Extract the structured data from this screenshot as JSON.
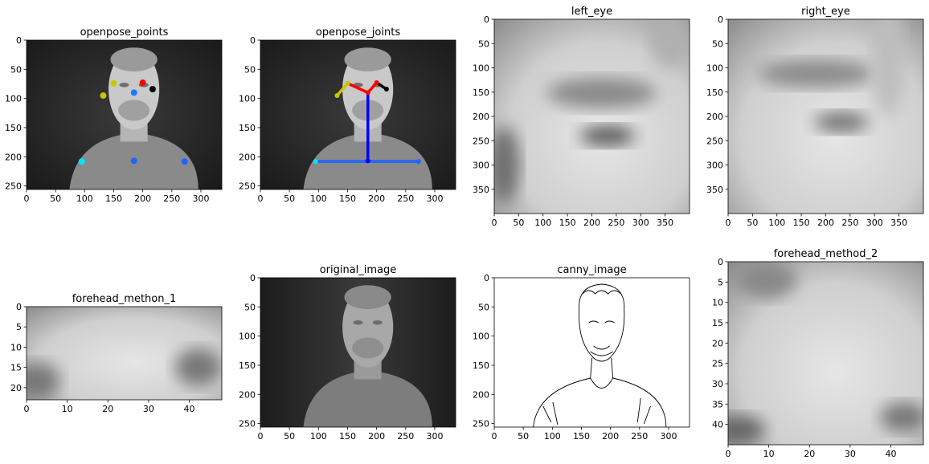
{
  "chart_data": [
    {
      "type": "image",
      "title": "openpose_points",
      "xticks": [
        0,
        50,
        100,
        150,
        200,
        250,
        300
      ],
      "yticks": [
        0,
        50,
        100,
        150,
        200,
        250
      ],
      "xlim": [
        0,
        336
      ],
      "ylim": [
        256,
        0
      ],
      "image": "thermal_face",
      "points": [
        {
          "x": 150,
          "y": 74,
          "color": "#c8c800"
        },
        {
          "x": 200,
          "y": 73,
          "color": "#ff0000"
        },
        {
          "x": 217,
          "y": 84,
          "color": "#000000"
        },
        {
          "x": 132,
          "y": 95,
          "color": "#c8c800"
        },
        {
          "x": 185,
          "y": 90,
          "color": "#1f77ff"
        },
        {
          "x": 95,
          "y": 208,
          "color": "#00e5ff"
        },
        {
          "x": 185,
          "y": 207,
          "color": "#1f66ff"
        },
        {
          "x": 272,
          "y": 208,
          "color": "#1f66ff"
        }
      ]
    },
    {
      "type": "image",
      "title": "openpose_joints",
      "xticks": [
        0,
        50,
        100,
        150,
        200,
        250,
        300
      ],
      "yticks": [
        0,
        50,
        100,
        150,
        200,
        250
      ],
      "xlim": [
        0,
        336
      ],
      "ylim": [
        256,
        0
      ],
      "image": "thermal_face",
      "segments": [
        {
          "x1": 185,
          "y1": 90,
          "x2": 185,
          "y2": 207,
          "color": "#0000ff"
        },
        {
          "x1": 95,
          "y1": 208,
          "x2": 272,
          "y2": 208,
          "color": "#1f66ff"
        },
        {
          "x1": 185,
          "y1": 90,
          "x2": 150,
          "y2": 74,
          "color": "#ff0000"
        },
        {
          "x1": 185,
          "y1": 90,
          "x2": 200,
          "y2": 73,
          "color": "#ff0000"
        },
        {
          "x1": 150,
          "y1": 74,
          "x2": 132,
          "y2": 95,
          "color": "#c8c800"
        },
        {
          "x1": 200,
          "y1": 73,
          "x2": 217,
          "y2": 84,
          "color": "#000000"
        }
      ],
      "points": [
        {
          "x": 150,
          "y": 74,
          "color": "#c8c800"
        },
        {
          "x": 200,
          "y": 73,
          "color": "#ff0000"
        },
        {
          "x": 217,
          "y": 84,
          "color": "#000000"
        },
        {
          "x": 132,
          "y": 95,
          "color": "#c8c800"
        },
        {
          "x": 185,
          "y": 90,
          "color": "#ff0000"
        },
        {
          "x": 95,
          "y": 208,
          "color": "#00e5ff"
        },
        {
          "x": 185,
          "y": 207,
          "color": "#0000ff"
        },
        {
          "x": 272,
          "y": 208,
          "color": "#1f66ff"
        }
      ]
    },
    {
      "type": "image",
      "title": "left_eye",
      "xticks": [
        0,
        50,
        100,
        150,
        200,
        250,
        300,
        350
      ],
      "yticks": [
        0,
        50,
        100,
        150,
        200,
        250,
        300,
        350
      ],
      "xlim": [
        0,
        400
      ],
      "ylim": [
        400,
        0
      ],
      "image": "blur_eye_left"
    },
    {
      "type": "image",
      "title": "right_eye",
      "xticks": [
        0,
        50,
        100,
        150,
        200,
        250,
        300,
        350
      ],
      "yticks": [
        0,
        50,
        100,
        150,
        200,
        250,
        300,
        350
      ],
      "xlim": [
        0,
        400
      ],
      "ylim": [
        400,
        0
      ],
      "image": "blur_eye_right"
    },
    {
      "type": "image",
      "title": "forehead_methon_1",
      "xticks": [
        0,
        10,
        20,
        30,
        40
      ],
      "yticks": [
        0,
        5,
        10,
        15,
        20
      ],
      "xlim": [
        0,
        48
      ],
      "ylim": [
        23,
        0
      ],
      "image": "blur_forehead_1"
    },
    {
      "type": "image",
      "title": "original_image",
      "xticks": [
        0,
        50,
        100,
        150,
        200,
        250,
        300
      ],
      "yticks": [
        0,
        50,
        100,
        150,
        200,
        250
      ],
      "xlim": [
        0,
        336
      ],
      "ylim": [
        256,
        0
      ],
      "image": "thermal_face_soft"
    },
    {
      "type": "image",
      "title": "canny_image",
      "xticks": [
        0,
        50,
        100,
        150,
        200,
        250,
        300
      ],
      "yticks": [
        0,
        50,
        100,
        150,
        200,
        250
      ],
      "xlim": [
        0,
        336
      ],
      "ylim": [
        256,
        0
      ],
      "image": "canny_edges"
    },
    {
      "type": "image",
      "title": "forehead_method_2",
      "xticks": [
        0,
        10,
        20,
        30,
        40
      ],
      "yticks": [
        0,
        5,
        10,
        15,
        20,
        25,
        30,
        35,
        40
      ],
      "xlim": [
        0,
        48
      ],
      "ylim": [
        45,
        0
      ],
      "image": "blur_forehead_2"
    }
  ]
}
